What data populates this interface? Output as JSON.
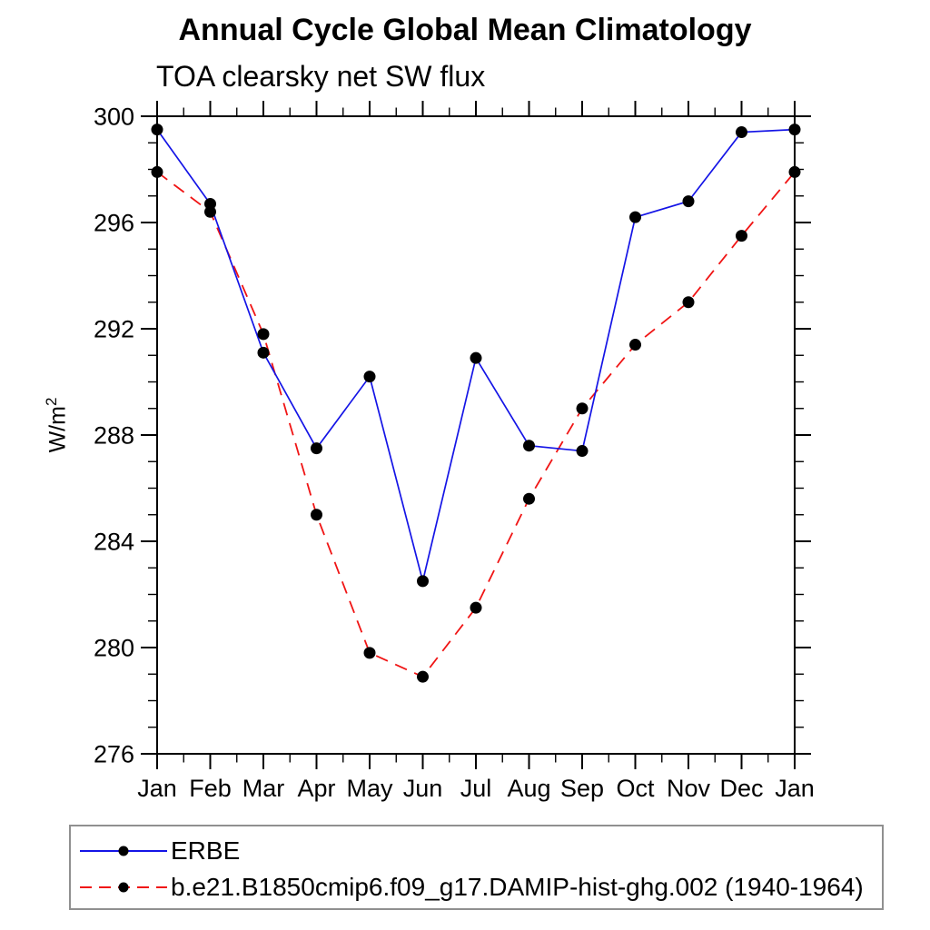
{
  "figure": {
    "background": "#ffffff",
    "text_color": "#000000"
  },
  "chart_data": {
    "type": "line",
    "title": "Annual Cycle Global Mean Climatology",
    "subtitle": "TOA clearsky net SW flux",
    "ylabel": "W/m²",
    "ylabel_base": "W/m",
    "ylabel_sup": "2",
    "categories": [
      "Jan",
      "Feb",
      "Mar",
      "Apr",
      "May",
      "Jun",
      "Jul",
      "Aug",
      "Sep",
      "Oct",
      "Nov",
      "Dec",
      "Jan"
    ],
    "series": [
      {
        "name": "ERBE",
        "color": "#1414e6",
        "line_style": "solid",
        "marker": "circle",
        "marker_color": "#000000",
        "values": [
          299.5,
          296.7,
          291.1,
          287.5,
          290.2,
          282.5,
          290.9,
          287.6,
          287.4,
          296.2,
          296.8,
          299.4,
          299.5
        ]
      },
      {
        "name": "b.e21.B1850cmip6.f09_g17.DAMIP-hist-ghg.002 (1940-1964)",
        "color": "#f01414",
        "line_style": "dashed",
        "marker": "circle",
        "marker_color": "#000000",
        "values": [
          297.9,
          296.4,
          291.8,
          285.0,
          279.8,
          278.9,
          281.5,
          285.6,
          289.0,
          291.4,
          293.0,
          295.5,
          297.9
        ]
      }
    ],
    "ylim": [
      276,
      300
    ],
    "y_major_ticks": [
      276,
      280,
      284,
      288,
      292,
      296,
      300
    ],
    "y_minor_step": 1,
    "x_minor_ticks": "midpoint between months",
    "grid": false,
    "legend_position": "bottom-left framed box",
    "axis_color": "#000000"
  }
}
